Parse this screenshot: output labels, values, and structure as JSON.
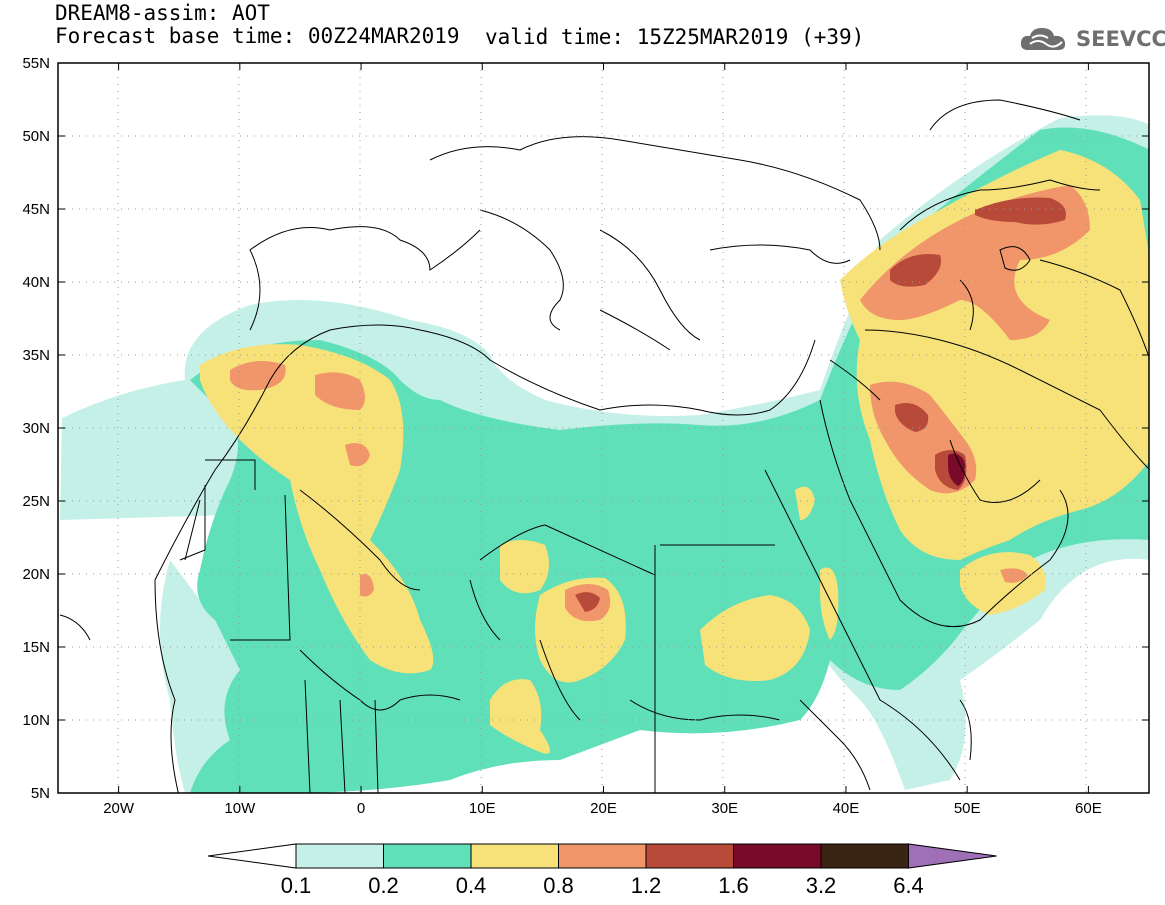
{
  "header": {
    "line1": "DREAM8-assim: AOT",
    "line2": "Forecast base time: 00Z24MAR2019",
    "valid": "valid time: 15Z25MAR2019 (+39)"
  },
  "logo": {
    "text": "SEEVCCC",
    "icon": "cloud-icon",
    "color": "#6f6f6f"
  },
  "map": {
    "lon_ticks": [
      "20W",
      "10W",
      "0",
      "10E",
      "20E",
      "30E",
      "40E",
      "50E",
      "60E"
    ],
    "lat_ticks": [
      "55N",
      "50N",
      "45N",
      "40N",
      "35N",
      "30N",
      "25N",
      "20N",
      "15N",
      "10N",
      "5N"
    ],
    "lon_range": [
      -25,
      65
    ],
    "lat_range": [
      5,
      55
    ]
  },
  "colorbar": {
    "labels": [
      "0.1",
      "0.2",
      "0.4",
      "0.8",
      "1.2",
      "1.6",
      "3.2",
      "6.4"
    ],
    "colors": [
      "#c4f0e8",
      "#5fe0b8",
      "#f7e27a",
      "#f0966a",
      "#b84a3a",
      "#7a0a2a",
      "#3a2515"
    ],
    "under_color": "#ffffff",
    "over_color": "#9f6fb8"
  }
}
